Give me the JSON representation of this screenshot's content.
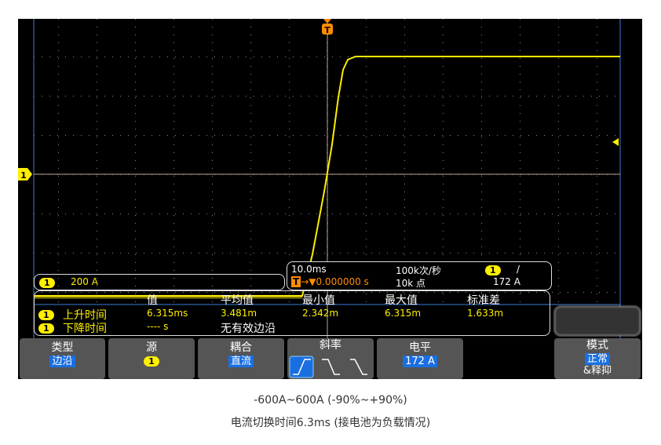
{
  "colors": {
    "trace": "#ffef00",
    "trigger": "#ff8c00",
    "accent": "#1a6fe0"
  },
  "channel": {
    "num": "1",
    "scale": "200 A"
  },
  "timebase": {
    "scale": "10.0ms",
    "trigger_delay": "0.000000 s",
    "sample_rate": "100k次/秒",
    "points": "10k 点",
    "trig_ch": "1",
    "trig_slope": "/",
    "trig_level": "172 A"
  },
  "measure": {
    "headers": [
      "值",
      "平均值",
      "最小值",
      "最大值",
      "标准差"
    ],
    "rows": [
      {
        "ch": "1",
        "name": "上升时间",
        "values": [
          "6.315ms",
          "3.481m",
          "2.342m",
          "6.315m",
          "1.633m"
        ]
      },
      {
        "ch": "1",
        "name": "下降时间",
        "value": "---- s",
        "note": "无有效边沿"
      }
    ]
  },
  "softkeys": {
    "type": {
      "label": "类型",
      "value": "边沿"
    },
    "source": {
      "label": "源",
      "value": "1"
    },
    "coupling": {
      "label": "耦合",
      "value": "直流"
    },
    "slope": {
      "label": "斜率"
    },
    "level": {
      "label": "电平",
      "value": "172 A"
    },
    "mode": {
      "label": "模式",
      "value": "正常",
      "extra": "&释抑"
    }
  },
  "marker": {
    "trigger": "T",
    "ch": "1"
  },
  "caption": {
    "line1": "-600A~600A (-90%~+90%)",
    "line2": "电流切换时间6.3ms (接电池为负载情况)"
  }
}
